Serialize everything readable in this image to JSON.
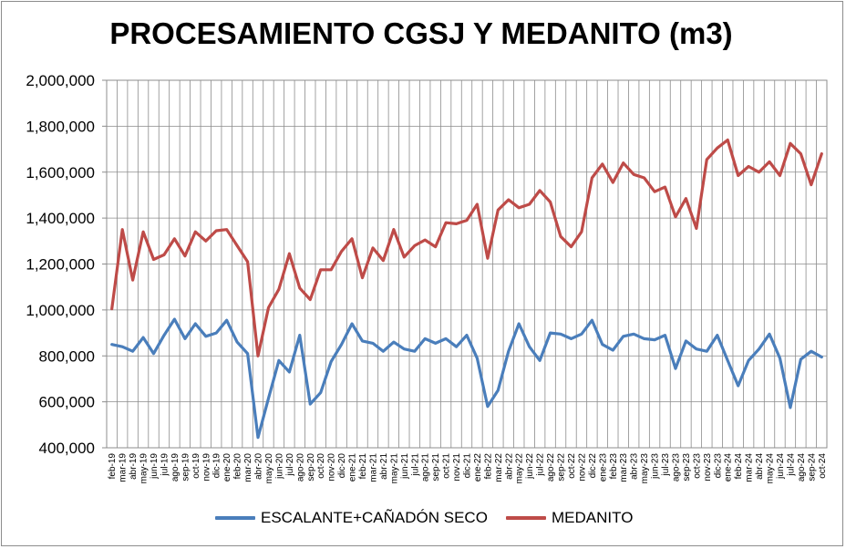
{
  "chart_data": {
    "type": "line",
    "title": "PROCESAMIENTO CGSJ Y MEDANITO (m3)",
    "xlabel": "",
    "ylabel": "",
    "ylim": [
      400000,
      2000000
    ],
    "yticks": [
      "400,000",
      "600,000",
      "800,000",
      "1,000,000",
      "1,200,000",
      "1,400,000",
      "1,600,000",
      "1,800,000",
      "2,000,000"
    ],
    "grid": true,
    "legend_position": "bottom",
    "categories": [
      "feb-19",
      "mar-19",
      "abr-19",
      "may-19",
      "jun-19",
      "jul-19",
      "ago-19",
      "sep-19",
      "oct-19",
      "nov-19",
      "dic-19",
      "ene-20",
      "feb-20",
      "mar-20",
      "abr-20",
      "may-20",
      "jun-20",
      "jul-20",
      "ago-20",
      "sep-20",
      "oct-20",
      "nov-20",
      "dic-20",
      "ene-21",
      "feb-21",
      "mar-21",
      "abr-21",
      "may-21",
      "jun-21",
      "jul-21",
      "ago-21",
      "sep-21",
      "oct-21",
      "nov-21",
      "dic-21",
      "ene-22",
      "feb-22",
      "mar-22",
      "abr-22",
      "may-22",
      "jun-22",
      "jul-22",
      "ago-22",
      "sep-22",
      "oct-22",
      "nov-22",
      "dic-22",
      "ene-23",
      "feb-23",
      "mar-23",
      "abr-23",
      "may-23",
      "jun-23",
      "jul-23",
      "ago-23",
      "sep-23",
      "oct-23",
      "nov-23",
      "dic-23",
      "ene-24",
      "feb-24",
      "mar-24",
      "abr-24",
      "may-24",
      "jun-24",
      "jul-24",
      "ago-24",
      "sep-24",
      "oct-24"
    ],
    "series": [
      {
        "name": "ESCALANTE+CAÑADÓN SECO",
        "color": "#4a7ebb",
        "values": [
          850000,
          840000,
          820000,
          880000,
          810000,
          890000,
          960000,
          875000,
          940000,
          885000,
          900000,
          955000,
          860000,
          810000,
          445000,
          615000,
          780000,
          730000,
          890000,
          590000,
          640000,
          775000,
          850000,
          940000,
          865000,
          855000,
          820000,
          860000,
          830000,
          820000,
          875000,
          855000,
          875000,
          840000,
          890000,
          790000,
          580000,
          650000,
          820000,
          940000,
          840000,
          780000,
          900000,
          895000,
          875000,
          895000,
          955000,
          850000,
          825000,
          885000,
          895000,
          875000,
          870000,
          890000,
          745000,
          865000,
          830000,
          820000,
          890000,
          780000,
          670000,
          780000,
          830000,
          895000,
          790000,
          575000,
          785000,
          820000,
          795000
        ]
      },
      {
        "name": "MEDANITO",
        "color": "#be4b48",
        "values": [
          1005000,
          1350000,
          1130000,
          1340000,
          1220000,
          1240000,
          1310000,
          1235000,
          1340000,
          1300000,
          1345000,
          1350000,
          1280000,
          1210000,
          800000,
          1010000,
          1090000,
          1245000,
          1095000,
          1045000,
          1175000,
          1175000,
          1255000,
          1310000,
          1140000,
          1270000,
          1215000,
          1350000,
          1230000,
          1280000,
          1305000,
          1275000,
          1380000,
          1375000,
          1390000,
          1460000,
          1225000,
          1435000,
          1480000,
          1445000,
          1460000,
          1520000,
          1470000,
          1320000,
          1275000,
          1340000,
          1575000,
          1635000,
          1555000,
          1640000,
          1590000,
          1575000,
          1515000,
          1535000,
          1405000,
          1485000,
          1355000,
          1655000,
          1705000,
          1740000,
          1585000,
          1625000,
          1600000,
          1645000,
          1585000,
          1725000,
          1680000,
          1545000,
          1680000
        ]
      }
    ]
  }
}
